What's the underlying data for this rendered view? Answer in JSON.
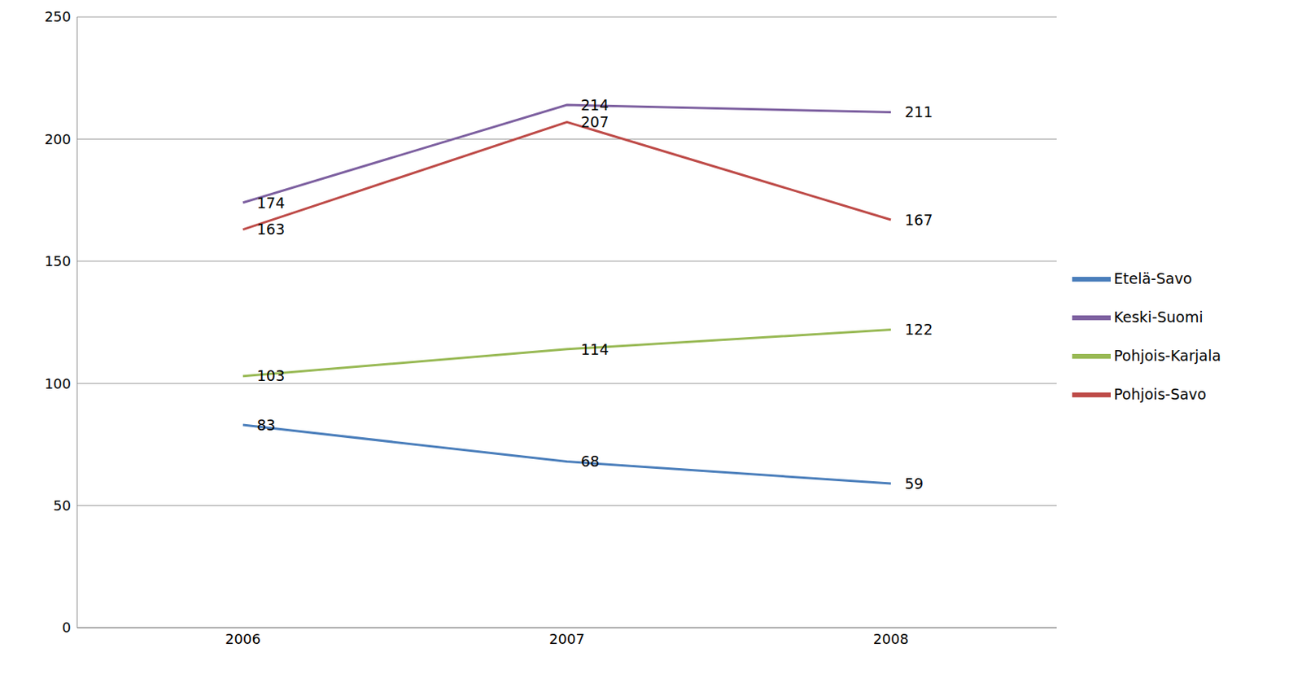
{
  "chart_data": {
    "type": "line",
    "categories": [
      "2006",
      "2007",
      "2008"
    ],
    "series": [
      {
        "name": "Etelä-Savo",
        "color": "#4a7ebb",
        "values": [
          83,
          68,
          59
        ]
      },
      {
        "name": "Pohjois-Savo",
        "color": "#be4b48",
        "values": [
          163,
          207,
          167
        ]
      },
      {
        "name": "Pohjois-Karjala",
        "color": "#98b954",
        "values": [
          103,
          114,
          122
        ]
      },
      {
        "name": "Keski-Suomi",
        "color": "#7d60a0",
        "values": [
          174,
          214,
          211
        ]
      }
    ],
    "ylim": [
      0,
      250
    ],
    "yticks": [
      0,
      50,
      100,
      150,
      200,
      250
    ],
    "grid": true,
    "legend": "right",
    "data_labels": true
  }
}
